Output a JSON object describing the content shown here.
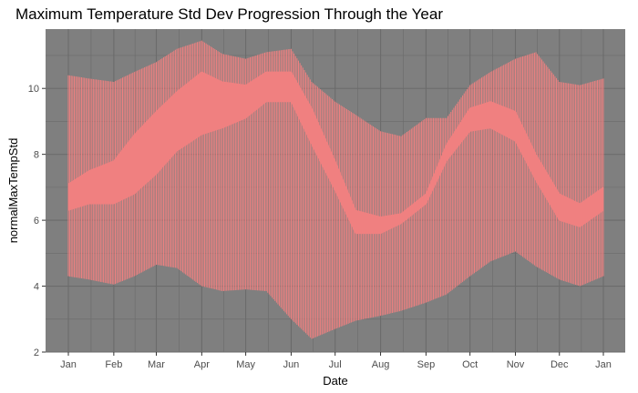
{
  "chart_data": {
    "type": "area",
    "title": "Maximum Temperature Std Dev Progression Through the Year",
    "xlabel": "Date",
    "ylabel": "normalMaxTempStd",
    "x_ticks": [
      "Jan",
      "Feb",
      "Mar",
      "Apr",
      "May",
      "Jun",
      "Jul",
      "Aug",
      "Sep",
      "Oct",
      "Nov",
      "Dec",
      "Jan"
    ],
    "y_ticks": [
      2,
      4,
      6,
      8,
      10
    ],
    "xlim": [
      "2020-01-01",
      "2020-12-31"
    ],
    "ylim": [
      2,
      11.8
    ],
    "grid": true,
    "colors": {
      "panel": "#7f7f7f",
      "grid": "#6b6b6b",
      "band": "#f08080"
    },
    "series": [
      {
        "role": "outer-range",
        "x": [
          "2020-01-01",
          "2020-01-15",
          "2020-02-01",
          "2020-02-15",
          "2020-03-01",
          "2020-03-15",
          "2020-04-01",
          "2020-04-15",
          "2020-05-01",
          "2020-05-15",
          "2020-06-01",
          "2020-06-15",
          "2020-07-01",
          "2020-07-15",
          "2020-08-01",
          "2020-08-15",
          "2020-09-01",
          "2020-09-15",
          "2020-10-01",
          "2020-10-15",
          "2020-11-01",
          "2020-11-15",
          "2020-12-01",
          "2020-12-15",
          "2020-12-31"
        ],
        "low": [
          4.3,
          4.2,
          4.05,
          4.3,
          4.65,
          4.55,
          4.0,
          3.85,
          3.9,
          3.85,
          3.0,
          2.4,
          2.7,
          2.95,
          3.1,
          3.25,
          3.5,
          3.75,
          4.3,
          4.75,
          5.05,
          4.6,
          4.2,
          4.0,
          4.3
        ],
        "high": [
          10.4,
          10.3,
          10.2,
          10.5,
          10.8,
          11.2,
          11.45,
          11.05,
          10.9,
          11.1,
          11.2,
          10.2,
          9.6,
          9.2,
          8.7,
          8.55,
          9.1,
          9.1,
          10.1,
          10.5,
          10.9,
          11.1,
          10.2,
          10.1,
          10.3
        ]
      },
      {
        "role": "inner-range",
        "x": [
          "2020-01-01",
          "2020-01-15",
          "2020-02-01",
          "2020-02-15",
          "2020-03-01",
          "2020-03-15",
          "2020-04-01",
          "2020-04-15",
          "2020-05-01",
          "2020-05-15",
          "2020-06-01",
          "2020-06-15",
          "2020-07-01",
          "2020-07-15",
          "2020-08-01",
          "2020-08-15",
          "2020-09-01",
          "2020-09-15",
          "2020-10-01",
          "2020-10-15",
          "2020-11-01",
          "2020-11-15",
          "2020-12-01",
          "2020-12-15",
          "2020-12-31"
        ],
        "low": [
          6.3,
          6.5,
          6.5,
          6.8,
          7.4,
          8.1,
          8.6,
          8.8,
          9.1,
          9.6,
          9.6,
          8.3,
          6.9,
          5.6,
          5.6,
          5.9,
          6.5,
          7.8,
          8.7,
          8.8,
          8.4,
          7.2,
          6.0,
          5.8,
          6.3
        ],
        "high": [
          7.1,
          7.5,
          7.8,
          8.6,
          9.3,
          9.9,
          10.5,
          10.2,
          10.1,
          10.5,
          10.5,
          9.4,
          7.8,
          6.3,
          6.1,
          6.2,
          6.8,
          8.3,
          9.4,
          9.6,
          9.3,
          8.0,
          6.8,
          6.5,
          7.0
        ]
      }
    ]
  }
}
